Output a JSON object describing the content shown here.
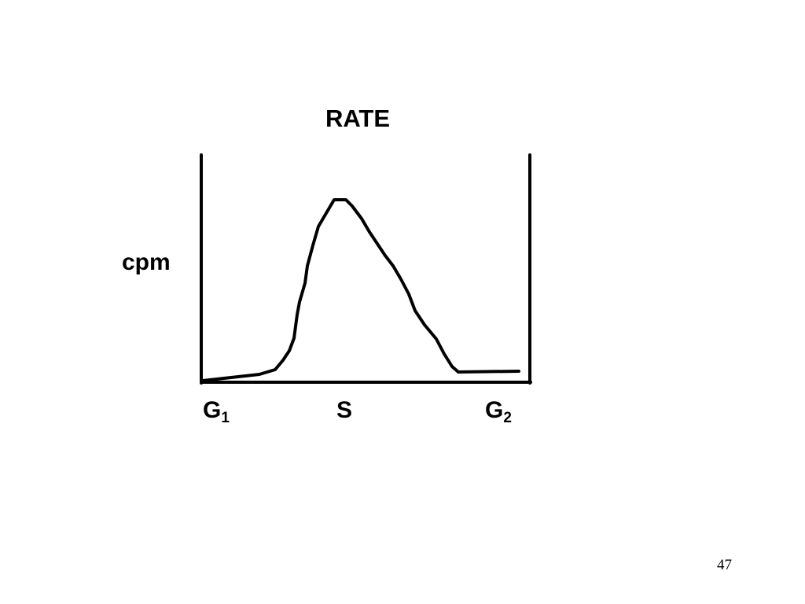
{
  "title": "RATE",
  "y_label": "cpm",
  "x_labels": [
    {
      "text": "G",
      "subscript": "1"
    },
    {
      "text": "S"
    },
    {
      "text": "G",
      "subscript": "2"
    }
  ],
  "page_number": "47"
}
